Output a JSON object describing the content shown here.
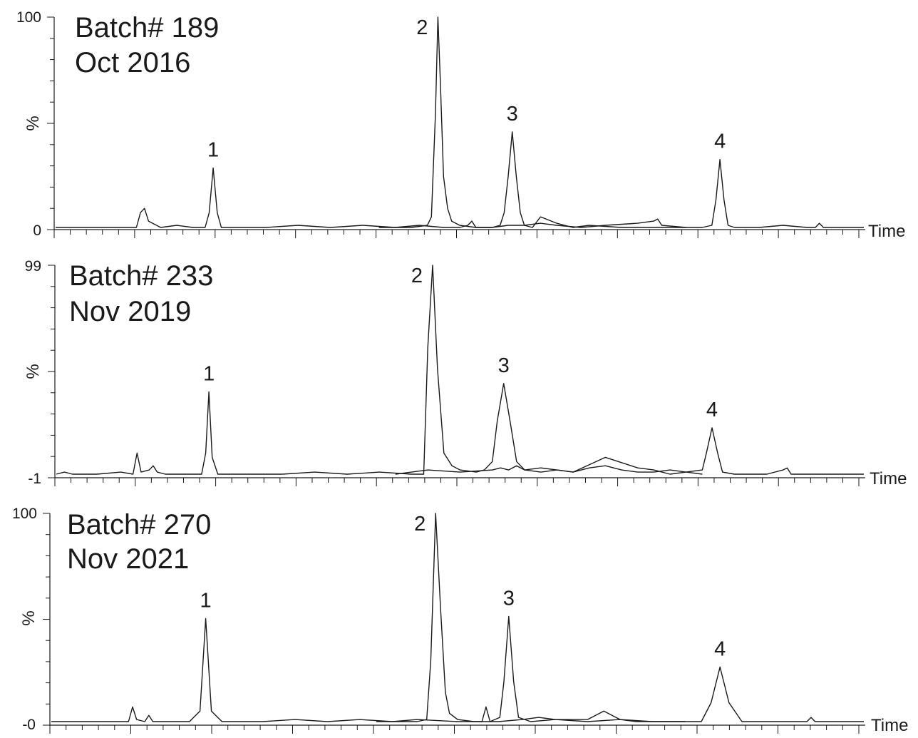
{
  "chart_data": [
    {
      "type": "line",
      "title": [
        "Batch# 189",
        "Oct 2016"
      ],
      "ylabel": "%",
      "xlabel": "Time",
      "ylim": [
        0,
        100
      ],
      "y_tick_labels": [
        "100",
        "%",
        "0"
      ],
      "peaks": [
        {
          "label": "1",
          "x": 0.195,
          "height": 29
        },
        {
          "label": "2",
          "x": 0.473,
          "height": 100
        },
        {
          "label": "3",
          "x": 0.565,
          "height": 46
        },
        {
          "label": "4",
          "x": 0.822,
          "height": 33
        }
      ],
      "series": [
        {
          "color": "#1a1a1a",
          "x": [
            0,
            0.02,
            0.05,
            0.08,
            0.1,
            0.105,
            0.11,
            0.115,
            0.13,
            0.15,
            0.17,
            0.185,
            0.19,
            0.195,
            0.2,
            0.205,
            0.22,
            0.26,
            0.3,
            0.34,
            0.38,
            0.42,
            0.45,
            0.48,
            0.5,
            0.51,
            0.515,
            0.52,
            0.54,
            0.56,
            0.58,
            0.6,
            0.62,
            0.65,
            0.68,
            0.72,
            0.74,
            0.745,
            0.75,
            0.78,
            0.8,
            0.812,
            0.817,
            0.822,
            0.827,
            0.832,
            0.84,
            0.87,
            0.9,
            0.93,
            0.94,
            0.945,
            0.95,
            0.97,
            1.0
          ],
          "y": [
            1,
            1,
            1,
            1,
            1,
            8,
            10,
            4,
            1,
            2,
            1,
            1,
            8,
            29,
            8,
            1,
            1,
            1,
            2,
            1,
            2,
            1,
            2,
            1,
            1,
            2,
            4,
            1,
            1,
            2,
            2,
            3,
            2,
            1,
            2,
            3,
            4,
            5,
            2,
            1,
            1,
            2,
            14,
            33,
            14,
            2,
            1,
            1,
            2,
            1,
            1,
            3,
            1,
            1,
            1
          ]
        },
        {
          "color": "#1a1a1a",
          "x": [
            0.4,
            0.44,
            0.46,
            0.465,
            0.47,
            0.473,
            0.476,
            0.48,
            0.485,
            0.49,
            0.5,
            0.52,
            0.54,
            0.55,
            0.555,
            0.56,
            0.565,
            0.57,
            0.575,
            0.58,
            0.59,
            0.6,
            0.62,
            0.64,
            0.66,
            0.7,
            0.74,
            0.78
          ],
          "y": [
            1,
            1,
            2,
            6,
            55,
            100,
            70,
            25,
            10,
            4,
            2,
            1,
            1,
            2,
            8,
            25,
            46,
            25,
            8,
            2,
            1,
            6,
            3,
            1,
            2,
            1,
            1,
            1
          ]
        }
      ]
    },
    {
      "type": "line",
      "title": [
        "Batch# 233",
        "Nov 2019"
      ],
      "ylabel": "%",
      "xlabel": "Time",
      "ylim": [
        -1,
        99
      ],
      "y_tick_labels": [
        "99",
        "%",
        "-1"
      ],
      "peaks": [
        {
          "label": "1",
          "x": 0.189,
          "height": 39
        },
        {
          "label": "2",
          "x": 0.466,
          "height": 99
        },
        {
          "label": "3",
          "x": 0.554,
          "height": 43
        },
        {
          "label": "4",
          "x": 0.812,
          "height": 22
        }
      ],
      "series": [
        {
          "color": "#1a1a1a",
          "x": [
            0,
            0.01,
            0.02,
            0.05,
            0.08,
            0.095,
            0.1,
            0.105,
            0.115,
            0.12,
            0.125,
            0.135,
            0.16,
            0.18,
            0.185,
            0.189,
            0.193,
            0.2,
            0.22,
            0.28
          ],
          "y": [
            0,
            1,
            0,
            0,
            1,
            0,
            10,
            1,
            2,
            4,
            1,
            0,
            0,
            0,
            10,
            39,
            8,
            0,
            0,
            0
          ]
        },
        {
          "color": "#1a1a1a",
          "x": [
            0.28,
            0.32,
            0.36,
            0.4,
            0.44,
            0.455,
            0.46,
            0.466,
            0.472,
            0.48,
            0.49,
            0.5,
            0.52,
            0.53,
            0.54,
            0.546,
            0.554,
            0.562,
            0.57,
            0.58,
            0.6,
            0.62,
            0.64,
            0.66,
            0.68,
            0.7,
            0.72,
            0.74,
            0.76,
            0.78,
            0.8
          ],
          "y": [
            0,
            1,
            0,
            1,
            0,
            0,
            60,
            99,
            50,
            10,
            4,
            2,
            1,
            2,
            6,
            25,
            43,
            25,
            6,
            2,
            1,
            2,
            1,
            3,
            4,
            2,
            1,
            1,
            2,
            1,
            0
          ]
        },
        {
          "color": "#1a1a1a",
          "x": [
            0.42,
            0.44,
            0.46,
            0.5,
            0.54,
            0.55,
            0.56,
            0.57,
            0.58,
            0.6,
            0.62,
            0.64,
            0.68,
            0.72,
            0.74,
            0.75,
            0.76,
            0.8,
            0.805,
            0.812,
            0.819,
            0.825,
            0.84,
            0.88,
            0.9,
            0.905,
            0.91,
            0.94,
            0.97,
            1.0
          ],
          "y": [
            0,
            1,
            2,
            1,
            2,
            3,
            2,
            4,
            2,
            3,
            2,
            1,
            8,
            3,
            2,
            1,
            0,
            2,
            10,
            22,
            10,
            1,
            0,
            0,
            2,
            3,
            0,
            0,
            0,
            0
          ]
        }
      ]
    },
    {
      "type": "line",
      "title": [
        "Batch# 270",
        "Nov 2021"
      ],
      "ylabel": "%",
      "xlabel": "Time",
      "ylim": [
        0,
        100
      ],
      "y_tick_labels": [
        "100",
        "%",
        "-0"
      ],
      "peaks": [
        {
          "label": "1",
          "x": 0.19,
          "height": 50
        },
        {
          "label": "2",
          "x": 0.473,
          "height": 100
        },
        {
          "label": "3",
          "x": 0.563,
          "height": 51
        },
        {
          "label": "4",
          "x": 0.823,
          "height": 27
        }
      ],
      "series": [
        {
          "color": "#1a1a1a",
          "x": [
            0,
            0.02,
            0.05,
            0.08,
            0.095,
            0.1,
            0.105,
            0.115,
            0.12,
            0.125,
            0.14,
            0.17,
            0.183,
            0.19,
            0.197,
            0.21,
            0.26,
            0.3,
            0.34,
            0.38,
            0.42,
            0.45,
            0.5,
            0.53,
            0.535,
            0.54,
            0.55,
            0.58,
            0.6,
            0.62,
            0.66,
            0.68,
            0.7,
            0.72,
            0.76,
            0.8,
            0.812,
            0.823,
            0.834,
            0.85,
            0.9,
            0.93,
            0.935,
            0.94,
            0.97,
            1.0
          ],
          "y": [
            1,
            1,
            1,
            1,
            1,
            8,
            2,
            1,
            4,
            1,
            1,
            1,
            6,
            50,
            6,
            1,
            1,
            2,
            1,
            2,
            1,
            2,
            1,
            1,
            8,
            1,
            1,
            2,
            3,
            2,
            2,
            6,
            2,
            1,
            1,
            1,
            10,
            27,
            10,
            1,
            1,
            1,
            3,
            1,
            1,
            1
          ]
        },
        {
          "color": "#1a1a1a",
          "x": [
            0.4,
            0.45,
            0.462,
            0.467,
            0.473,
            0.479,
            0.485,
            0.49,
            0.5,
            0.52,
            0.54,
            0.552,
            0.557,
            0.563,
            0.569,
            0.575,
            0.59,
            0.62,
            0.66,
            0.7,
            0.74,
            0.78
          ],
          "y": [
            1,
            1,
            2,
            30,
            100,
            55,
            15,
            5,
            2,
            1,
            1,
            3,
            20,
            51,
            20,
            3,
            1,
            2,
            1,
            2,
            1,
            1
          ]
        }
      ]
    }
  ]
}
